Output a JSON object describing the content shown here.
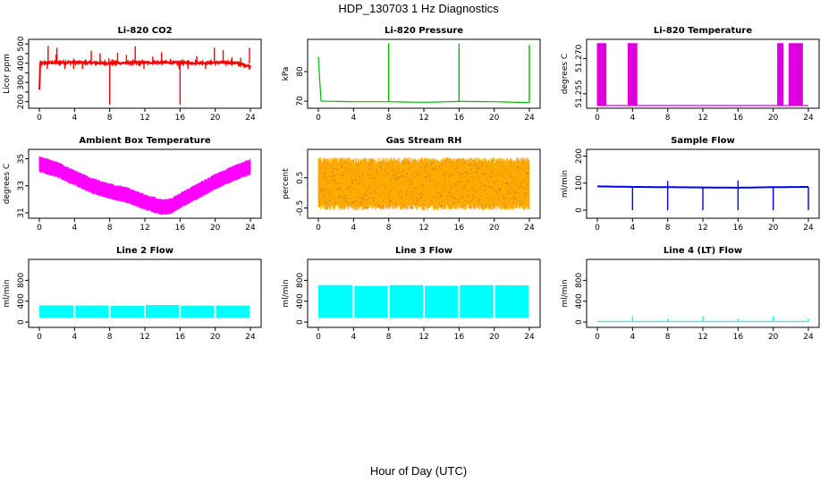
{
  "figure": {
    "title": "HDP_130703  1 Hz Diagnostics",
    "xlabel": "Hour of Day (UTC)"
  },
  "chart_data": [
    {
      "type": "line",
      "title": "Li-820 CO2",
      "ylabel": "Licor ppm",
      "color": "#ff0000",
      "xlim": [
        0,
        24
      ],
      "ylim": [
        180,
        510
      ],
      "xticks": [
        0,
        4,
        8,
        12,
        16,
        20,
        24
      ],
      "yticks": [
        200,
        250,
        300,
        350,
        400,
        450,
        500
      ],
      "yticklabels": [
        "200",
        "",
        "300",
        "",
        "400",
        "",
        "500"
      ],
      "series": [
        {
          "x": [
            0,
            0.1,
            0.2,
            1,
            2,
            4,
            6,
            8,
            10,
            12,
            14,
            16,
            18,
            20,
            22,
            24
          ],
          "values": [
            260,
            400,
            400,
            402,
            403,
            405,
            402,
            400,
            402,
            403,
            404,
            401,
            402,
            403,
            404,
            385
          ]
        }
      ],
      "spikes": [
        {
          "x": 8.0,
          "y": 185
        },
        {
          "x": 16.0,
          "y": 185
        },
        {
          "x": 1.0,
          "y": 490
        },
        {
          "x": 2.0,
          "y": 480
        }
      ]
    },
    {
      "type": "line",
      "title": "Li-820 Pressure",
      "ylabel": "kPa",
      "color": "#00bb00",
      "xlim": [
        0,
        24
      ],
      "ylim": [
        68.5,
        90
      ],
      "xticks": [
        0,
        4,
        8,
        12,
        16,
        20,
        24
      ],
      "yticks": [
        70,
        80
      ],
      "yticklabels": [
        "70",
        "80"
      ],
      "series": [
        {
          "x": [
            0,
            0.3,
            4,
            8,
            12,
            16,
            20,
            24
          ],
          "values": [
            85,
            70.0,
            69.8,
            69.8,
            69.6,
            69.9,
            69.8,
            69.5
          ]
        }
      ],
      "spikes": [
        {
          "x": 8.0,
          "y": 89.5
        },
        {
          "x": 16.0,
          "y": 89.5
        },
        {
          "x": 24.0,
          "y": 89
        }
      ]
    },
    {
      "type": "line",
      "title": "Li-820 Temperature",
      "ylabel": "degrees C",
      "color": "#dd00dd",
      "xlim": [
        0,
        24
      ],
      "ylim": [
        51.25,
        51.277
      ],
      "xticks": [
        0,
        4,
        8,
        12,
        16,
        20,
        24
      ],
      "yticks": [
        51.255,
        51.27
      ],
      "yticklabels": [
        "51.255",
        "51.270"
      ],
      "series": [
        {
          "x": [
            0,
            24
          ],
          "values": [
            51.25,
            51.25
          ]
        }
      ],
      "toggle_windows": [
        [
          0.0,
          1.0
        ],
        [
          3.5,
          4.5
        ],
        [
          20.5,
          21.2
        ],
        [
          21.8,
          23.4
        ]
      ]
    },
    {
      "type": "line",
      "title": "Ambient Box Temperature",
      "ylabel": "degrees C",
      "color": "#ff00ff",
      "xlim": [
        0,
        24
      ],
      "ylim": [
        30.8,
        35.5
      ],
      "xticks": [
        0,
        4,
        8,
        12,
        16,
        20,
        24
      ],
      "yticks": [
        31,
        33,
        35
      ],
      "yticklabels": [
        "31",
        "33",
        "35"
      ],
      "series": [
        {
          "x": [
            0,
            2,
            4,
            6,
            8,
            10,
            12,
            14,
            15,
            16,
            18,
            20,
            22,
            24
          ],
          "values": [
            34.6,
            34.2,
            33.6,
            33.0,
            32.6,
            32.3,
            31.8,
            31.4,
            31.5,
            31.9,
            32.6,
            33.3,
            33.9,
            34.4
          ]
        }
      ]
    },
    {
      "type": "line",
      "title": "Gas Stream RH",
      "ylabel": "percent",
      "color": "#ffaa00",
      "xlim": [
        0,
        24
      ],
      "ylim": [
        -0.75,
        1.35
      ],
      "xticks": [
        0,
        4,
        8,
        12,
        16,
        20,
        24
      ],
      "yticks": [
        -0.5,
        0.5
      ],
      "yticklabels": [
        "-0.5",
        "0.5"
      ],
      "series": [
        {
          "x": [
            0,
            24
          ],
          "values": [
            0.25,
            0.25
          ]
        }
      ],
      "band": [
        -0.5,
        1.1
      ]
    },
    {
      "type": "line",
      "title": "Sample Flow",
      "ylabel": "ml/min",
      "color": "#0000ee",
      "xlim": [
        0,
        24
      ],
      "ylim": [
        -20,
        215
      ],
      "xticks": [
        0,
        4,
        8,
        12,
        16,
        20,
        24
      ],
      "yticks": [
        0,
        100,
        200
      ],
      "yticklabels": [
        "0",
        "100",
        "200"
      ],
      "series": [
        {
          "x": [
            0,
            4,
            8,
            12,
            16,
            20,
            24
          ],
          "values": [
            88,
            86,
            85,
            84,
            83,
            85,
            86
          ]
        }
      ],
      "spikes": [
        {
          "x": 4,
          "y": 0
        },
        {
          "x": 8,
          "y": 0
        },
        {
          "x": 12,
          "y": 0
        },
        {
          "x": 16,
          "y": 0
        },
        {
          "x": 20,
          "y": 0
        },
        {
          "x": 24,
          "y": 0
        },
        {
          "x": 8,
          "y": 108
        },
        {
          "x": 16,
          "y": 110
        }
      ]
    },
    {
      "type": "area",
      "title": "Line 2 Flow",
      "ylabel": "ml/min",
      "color": "#00ffff",
      "xlim": [
        0,
        24
      ],
      "ylim": [
        -50,
        1150
      ],
      "xticks": [
        0,
        4,
        8,
        12,
        16,
        20,
        24
      ],
      "yticks": [
        0,
        400,
        800
      ],
      "yticklabels": [
        "0",
        "400",
        "800"
      ],
      "band": [
        80,
        320
      ],
      "band_range": [
        0,
        24
      ]
    },
    {
      "type": "area",
      "title": "Line 3 Flow",
      "ylabel": "ml/min",
      "color": "#00ffff",
      "xlim": [
        0,
        24
      ],
      "ylim": [
        -50,
        1150
      ],
      "xticks": [
        0,
        4,
        8,
        12,
        16,
        20,
        24
      ],
      "yticks": [
        0,
        400,
        800
      ],
      "yticklabels": [
        "0",
        "400",
        "800"
      ],
      "band": [
        80,
        700
      ],
      "band_range": [
        0,
        24
      ]
    },
    {
      "type": "line",
      "title": "Line 4 (LT) Flow",
      "ylabel": "ml/min",
      "color": "#00ffff",
      "xlim": [
        0,
        24
      ],
      "ylim": [
        -50,
        1150
      ],
      "xticks": [
        0,
        4,
        8,
        12,
        16,
        20,
        24
      ],
      "yticks": [
        0,
        400,
        800
      ],
      "yticklabels": [
        "0",
        "400",
        "800"
      ],
      "series": [
        {
          "x": [
            0,
            24
          ],
          "values": [
            10,
            10
          ]
        }
      ],
      "spikes": [
        {
          "x": 4,
          "y": 110
        },
        {
          "x": 8,
          "y": 60
        },
        {
          "x": 12,
          "y": 110
        },
        {
          "x": 16,
          "y": 60
        },
        {
          "x": 20,
          "y": 110
        },
        {
          "x": 24,
          "y": 60
        }
      ]
    }
  ]
}
